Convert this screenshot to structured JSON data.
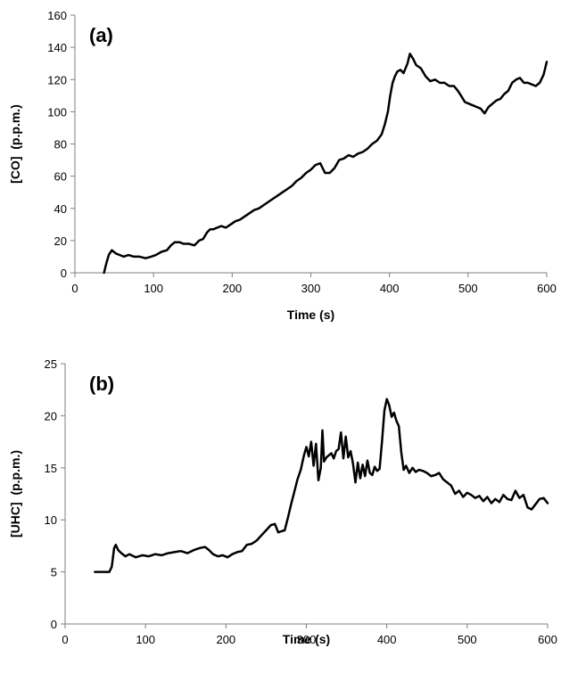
{
  "chart_data": [
    {
      "type": "line",
      "panel_label": "(a)",
      "xlabel": "Time (s)",
      "ylabel": "[CO]  (p.p.m.)",
      "xlim": [
        0,
        600
      ],
      "ylim": [
        0,
        160
      ],
      "xticks": [
        "0",
        "100",
        "200",
        "300",
        "400",
        "500",
        "600"
      ],
      "yticks": [
        "0",
        "20",
        "40",
        "60",
        "80",
        "100",
        "120",
        "140",
        "160"
      ],
      "grid": false,
      "series": [
        {
          "x": [
            37,
            40,
            43,
            47,
            52,
            57,
            62,
            68,
            75,
            82,
            90,
            97,
            103,
            110,
            117,
            122,
            127,
            133,
            138,
            145,
            152,
            158,
            163,
            168,
            172,
            176,
            181,
            186,
            192,
            198,
            204,
            210,
            216,
            222,
            228,
            234,
            240,
            246,
            252,
            258,
            264,
            270,
            276,
            282,
            288,
            294,
            300,
            306,
            312,
            318,
            324,
            330,
            336,
            342,
            348,
            354,
            360,
            366,
            372,
            378,
            384,
            390,
            394,
            398,
            401,
            404,
            407,
            410,
            414,
            418,
            423,
            426,
            430,
            434,
            440,
            446,
            452,
            458,
            464,
            470,
            476,
            482,
            487,
            491,
            496,
            501,
            506,
            511,
            516,
            521,
            526,
            531,
            536,
            541,
            546,
            551,
            556,
            561,
            566,
            571,
            576,
            581,
            586,
            591,
            596,
            600
          ],
          "y": [
            0,
            6,
            11,
            14,
            12,
            11,
            10,
            11,
            10,
            10,
            9,
            10,
            11,
            13,
            14,
            17,
            19,
            19,
            18,
            18,
            17,
            20,
            21,
            25,
            27,
            27,
            28,
            29,
            28,
            30,
            32,
            33,
            35,
            37,
            39,
            40,
            42,
            44,
            46,
            48,
            50,
            52,
            54,
            57,
            59,
            62,
            64,
            67,
            68,
            62,
            62,
            65,
            70,
            71,
            73,
            72,
            74,
            75,
            77,
            80,
            82,
            86,
            92,
            100,
            110,
            118,
            122,
            125,
            126,
            124,
            130,
            136,
            133,
            129,
            127,
            122,
            119,
            120,
            118,
            118,
            116,
            116,
            113,
            110,
            106,
            105,
            104,
            103,
            102,
            99,
            103,
            105,
            107,
            108,
            111,
            113,
            118,
            120,
            121,
            118,
            118,
            117,
            116,
            118,
            123,
            131
          ]
        }
      ]
    },
    {
      "type": "line",
      "panel_label": "(b)",
      "xlabel": "Time (s)",
      "ylabel": "[UHC]  (p.p.m.)",
      "xlim": [
        0,
        600
      ],
      "ylim": [
        0,
        25
      ],
      "xticks": [
        "0",
        "100",
        "200",
        "300",
        "400",
        "500",
        "600"
      ],
      "yticks": [
        "0",
        "5",
        "10",
        "15",
        "20",
        "25"
      ],
      "grid": false,
      "series": [
        {
          "x": [
            37,
            45,
            55,
            58,
            61,
            63,
            66,
            70,
            75,
            80,
            88,
            96,
            104,
            112,
            120,
            128,
            136,
            144,
            152,
            160,
            168,
            174,
            179,
            184,
            190,
            196,
            202,
            208,
            214,
            220,
            226,
            232,
            238,
            244,
            250,
            256,
            261,
            265,
            269,
            273,
            277,
            281,
            285,
            289,
            293,
            297,
            300,
            303,
            306,
            309,
            312,
            315,
            318,
            320,
            322,
            325,
            328,
            331,
            334,
            337,
            340,
            343,
            346,
            349,
            352,
            355,
            358,
            361,
            364,
            367,
            370,
            373,
            376,
            379,
            382,
            385,
            388,
            391,
            394,
            397,
            400,
            403,
            406,
            409,
            412,
            415,
            418,
            421,
            424,
            428,
            432,
            436,
            440,
            445,
            450,
            455,
            460,
            465,
            470,
            475,
            480,
            485,
            490,
            495,
            500,
            505,
            510,
            515,
            520,
            525,
            530,
            535,
            540,
            545,
            550,
            555,
            560,
            565,
            570,
            575,
            580,
            585,
            590,
            595,
            600
          ],
          "y": [
            5,
            5,
            5,
            5.5,
            7.3,
            7.6,
            7.1,
            6.8,
            6.5,
            6.7,
            6.4,
            6.6,
            6.5,
            6.7,
            6.6,
            6.8,
            6.9,
            7.0,
            6.8,
            7.1,
            7.3,
            7.4,
            7.1,
            6.7,
            6.5,
            6.6,
            6.4,
            6.7,
            6.9,
            7.0,
            7.6,
            7.7,
            8.0,
            8.5,
            9.0,
            9.5,
            9.6,
            8.8,
            8.9,
            9.0,
            10.2,
            11.5,
            12.7,
            13.9,
            14.8,
            16.2,
            17.0,
            16.1,
            17.5,
            15.2,
            17.3,
            13.8,
            15.0,
            18.6,
            15.6,
            16.0,
            16.2,
            16.4,
            15.9,
            16.6,
            16.8,
            18.4,
            15.9,
            18.0,
            16.0,
            16.6,
            15.4,
            13.6,
            15.5,
            14.0,
            15.3,
            14.2,
            15.7,
            14.5,
            14.3,
            15.1,
            14.7,
            14.9,
            17.5,
            20.5,
            21.6,
            21.0,
            19.9,
            20.3,
            19.5,
            19.0,
            16.5,
            14.8,
            15.2,
            14.5,
            15.0,
            14.6,
            14.8,
            14.7,
            14.5,
            14.2,
            14.3,
            14.5,
            13.9,
            13.6,
            13.3,
            12.5,
            12.8,
            12.2,
            12.6,
            12.4,
            12.1,
            12.3,
            11.8,
            12.2,
            11.6,
            12.0,
            11.7,
            12.4,
            12.0,
            11.9,
            12.8,
            12.1,
            12.4,
            11.2,
            11.0,
            11.5,
            12.0,
            12.1,
            11.6
          ]
        }
      ]
    }
  ]
}
